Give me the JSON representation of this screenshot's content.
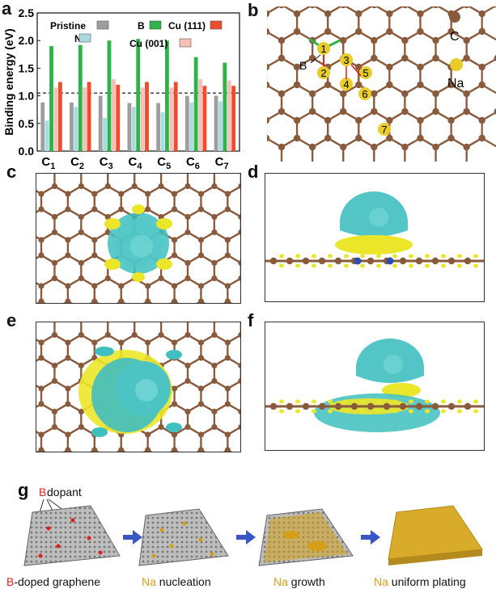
{
  "panels": {
    "a": "a",
    "b": "b",
    "c": "c",
    "d": "d",
    "e": "e",
    "f": "f",
    "g": "g"
  },
  "colors": {
    "pristine": "#9e9e9e",
    "N": "#a9dbe0",
    "B": "#2db34a",
    "cu001": "#f6c0b6",
    "cu111": "#ee4c2e",
    "carbon": "#8a5a3c",
    "sodium": "#e8cc2a",
    "cyan": "#40bfc0",
    "yellow": "#ece62a",
    "boron": "#2a4fb0"
  },
  "chart_data": {
    "type": "bar",
    "ylabel": "Binding energy (eV)",
    "ylim": [
      0,
      2.5
    ],
    "yticks": [
      0.0,
      0.5,
      1.0,
      1.5,
      2.0,
      2.5
    ],
    "tick_labels": [
      "0.0",
      "0.5",
      "1.0",
      "1.5",
      "2.0",
      "2.5"
    ],
    "categories": [
      "C1",
      "C2",
      "C3",
      "C4",
      "C5",
      "C6",
      "C7"
    ],
    "category_subscripts": [
      "1",
      "2",
      "3",
      "4",
      "5",
      "6",
      "7"
    ],
    "reference_line": 1.05,
    "legend_position": "top",
    "series": [
      {
        "name": "Pristine",
        "key": "pristine",
        "values": [
          0.88,
          0.88,
          1.0,
          0.87,
          0.87,
          1.0,
          1.0
        ]
      },
      {
        "name": "N",
        "key": "N",
        "values": [
          0.55,
          0.8,
          0.6,
          0.8,
          0.7,
          0.88,
          0.9
        ]
      },
      {
        "name": "B",
        "key": "B",
        "values": [
          1.9,
          1.92,
          2.0,
          2.03,
          2.0,
          1.7,
          1.6
        ]
      },
      {
        "name": "Cu (001)",
        "key": "cu001",
        "values": [
          1.15,
          1.15,
          1.3,
          1.15,
          1.15,
          1.3,
          1.28
        ]
      },
      {
        "name": "Cu (111)",
        "key": "cu111",
        "values": [
          1.25,
          1.25,
          1.2,
          1.25,
          1.25,
          1.18,
          1.18
        ]
      }
    ]
  },
  "panel_b": {
    "site_numbers": [
      "1",
      "2",
      "3",
      "4",
      "5",
      "6",
      "7"
    ],
    "boron_label": "B",
    "legend_carbon": "C",
    "legend_sodium": "Na"
  },
  "panel_g": {
    "dopant_label_prefix": "B",
    "dopant_label_suffix": " dopant",
    "steps": [
      {
        "highlight": "B",
        "rest": "-doped graphene"
      },
      {
        "highlight": "Na",
        "rest": " nucleation"
      },
      {
        "highlight": "Na",
        "rest": " growth"
      },
      {
        "highlight": "Na",
        "rest": " uniform plating"
      }
    ]
  }
}
